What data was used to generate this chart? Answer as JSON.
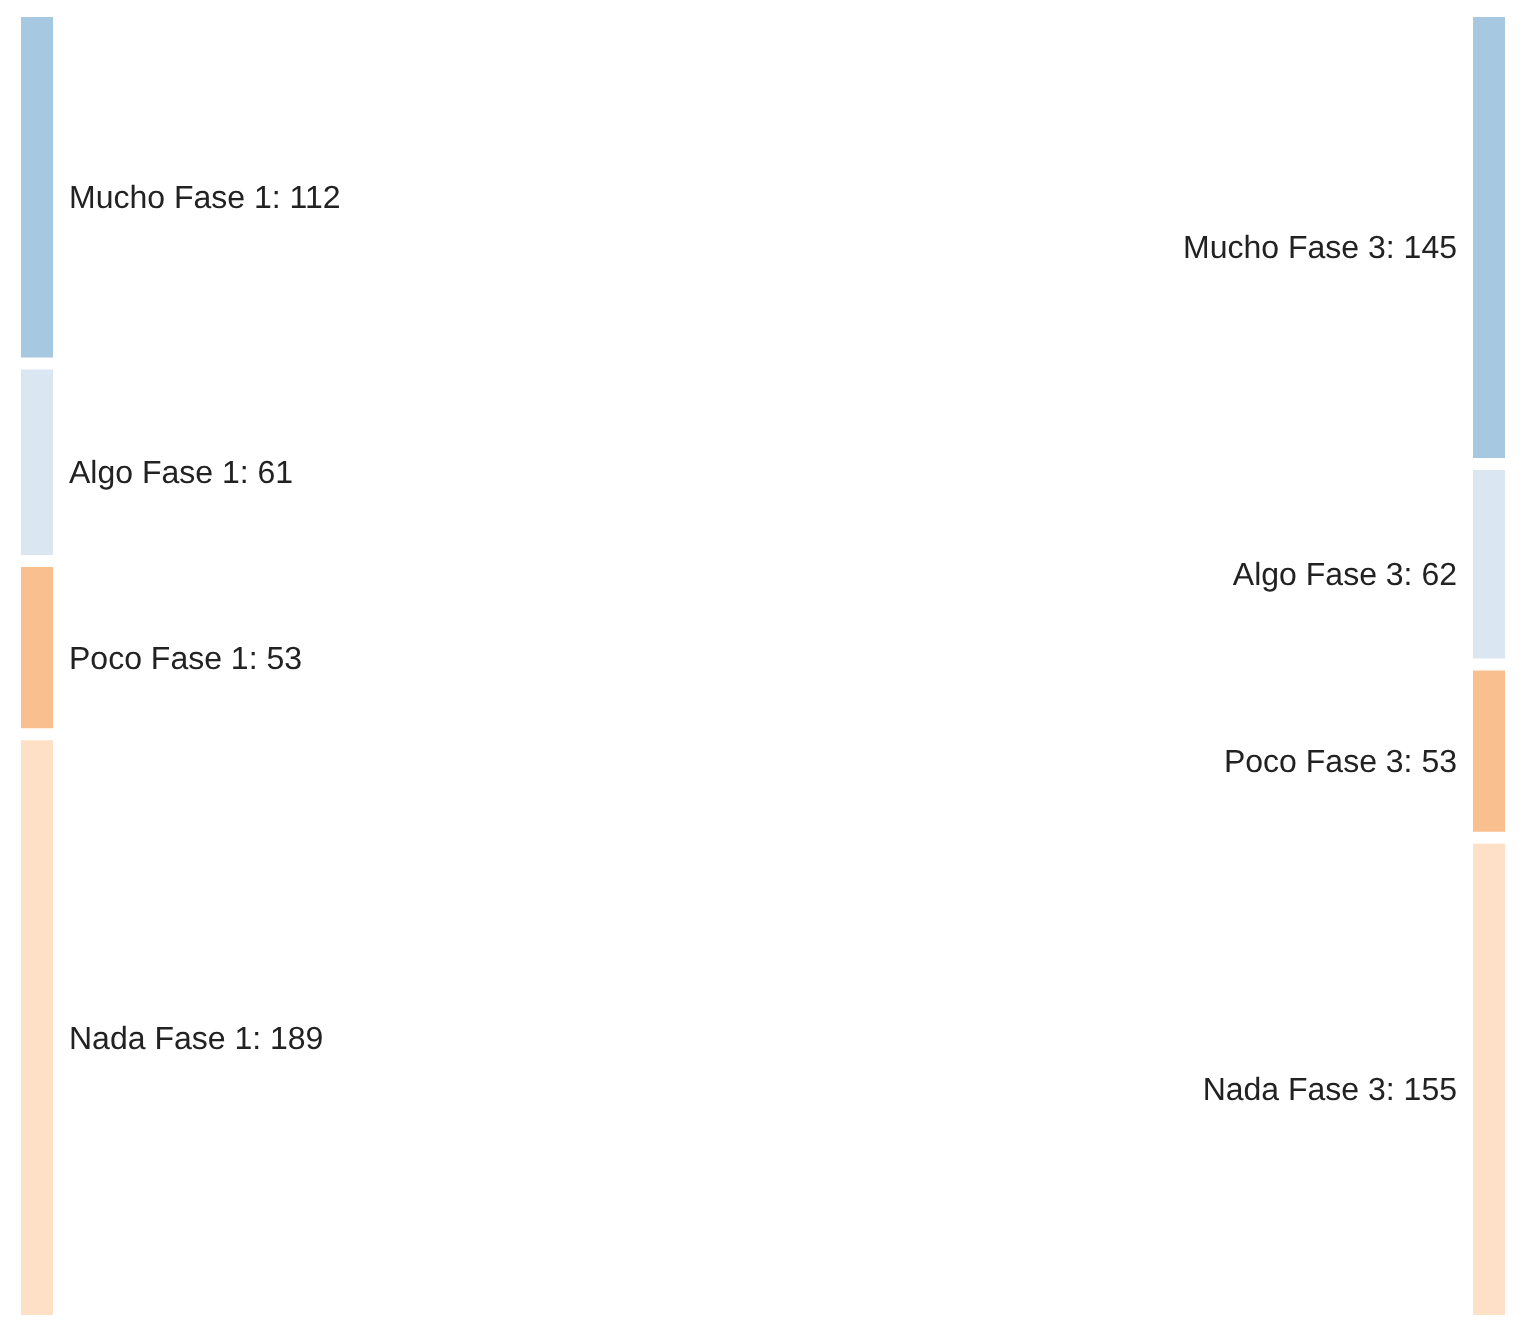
{
  "chart_data": {
    "type": "other",
    "categories": [
      "Mucho Fase 1",
      "Algo Fase 1",
      "Poco Fase 1",
      "Nada Fase 1",
      "Mucho Fase 3",
      "Algo Fase 3",
      "Poco Fase 3",
      "Nada Fase 3"
    ],
    "values": [
      112,
      61,
      53,
      189,
      145,
      62,
      53,
      155
    ],
    "value_labels": [
      ": 112",
      ": 61",
      ": 53",
      ": 189",
      ": 145",
      ": 62",
      ": 53",
      ": 155"
    ],
    "colors": [
      "#a6c8e0",
      "#dbe6f3",
      "#f9bf8e",
      "#fde0c5",
      "#a6c8e0",
      "#dbe6f3",
      "#f9bf8e",
      "#fde0c5"
    ]
  }
}
